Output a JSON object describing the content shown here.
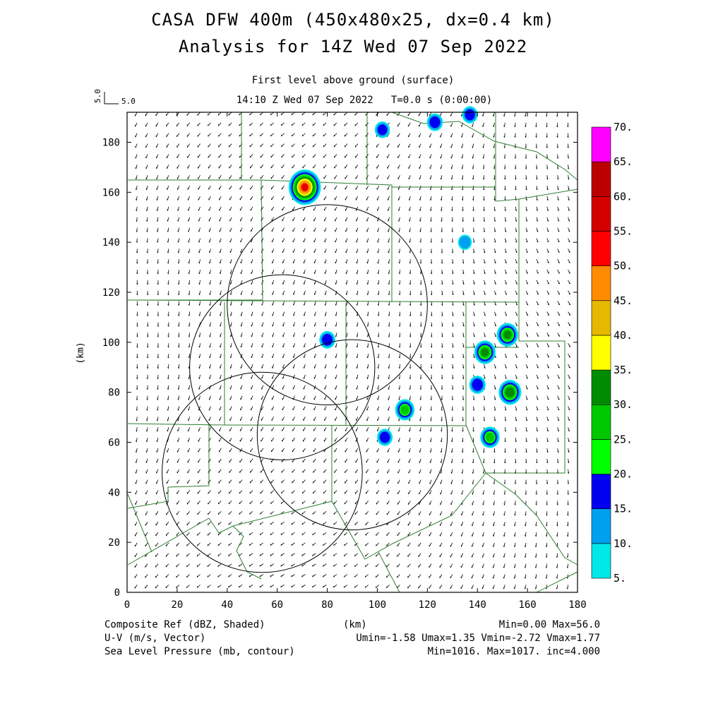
{
  "header": {
    "title_line1": "CASA DFW 400m (450x480x25, dx=0.4 km)",
    "title_line2": "Analysis for 14Z Wed 07 Sep 2022",
    "level": "First level above ground (surface)",
    "time": "14:10 Z Wed 07 Sep 2022   T=0.0 s (0:00:00)",
    "ref_vector_label": "5.0",
    "ref_vector_label_rot": "5.0"
  },
  "footer": {
    "field1": "Composite Ref (dBZ, Shaded)",
    "field2": "U-V (m/s, Vector)",
    "field3": "Sea Level Pressure (mb, contour)",
    "axis_unit": "(km)",
    "stats1": "Min=0.00 Max=56.0",
    "stats2": "Umin=-1.58 Umax=1.35 Vmin=-2.72 Vmax=1.77",
    "stats3": "Min=1016. Max=1017. inc=4.000"
  },
  "chart_data": {
    "type": "heatmap",
    "xlabel": "(km)",
    "ylabel": "(km)",
    "xlim": [
      0,
      180
    ],
    "ylim": [
      0,
      192
    ],
    "xticks": [
      "0",
      "20",
      "40",
      "60",
      "80",
      "100",
      "120",
      "140",
      "160",
      "180"
    ],
    "yticks": [
      "0",
      "20",
      "40",
      "60",
      "80",
      "100",
      "120",
      "140",
      "160",
      "180"
    ],
    "colorbar": {
      "levels": [
        "5.",
        "10.",
        "15.",
        "20.",
        "25.",
        "30.",
        "35.",
        "40.",
        "45.",
        "50.",
        "55.",
        "60.",
        "65.",
        "70."
      ],
      "colors": [
        "#00e8e8",
        "#00a0f0",
        "#0000f0",
        "#00ff00",
        "#00c800",
        "#008c00",
        "#ffff00",
        "#e6b800",
        "#ff8c00",
        "#ff0000",
        "#d40000",
        "#bc0000",
        "#ff00ff"
      ]
    },
    "radar_circles_km": [
      {
        "center": [
          80,
          115
        ],
        "radius": 40
      },
      {
        "center": [
          62,
          90
        ],
        "radius": 37
      },
      {
        "center": [
          90,
          63
        ],
        "radius": 38
      },
      {
        "center": [
          54,
          48
        ],
        "radius": 40
      }
    ],
    "echoes_dbz": [
      {
        "x": 71,
        "y": 162,
        "max": 56
      },
      {
        "x": 123,
        "y": 188,
        "max": 17
      },
      {
        "x": 137,
        "y": 191,
        "max": 16
      },
      {
        "x": 102,
        "y": 185,
        "max": 15
      },
      {
        "x": 153,
        "y": 80,
        "max": 33
      },
      {
        "x": 152,
        "y": 103,
        "max": 30
      },
      {
        "x": 143,
        "y": 96,
        "max": 30
      },
      {
        "x": 140,
        "y": 83,
        "max": 18
      },
      {
        "x": 145,
        "y": 62,
        "max": 25
      },
      {
        "x": 111,
        "y": 73,
        "max": 25
      },
      {
        "x": 80,
        "y": 101,
        "max": 17
      },
      {
        "x": 103,
        "y": 62,
        "max": 16
      },
      {
        "x": 135,
        "y": 140,
        "max": 12
      }
    ],
    "wind_vectors": "near-uniform light flow, mostly from north-northeast"
  }
}
